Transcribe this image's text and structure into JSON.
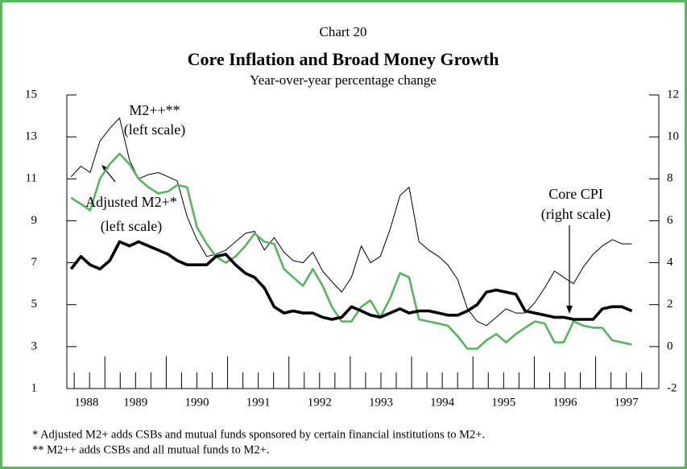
{
  "chart_data": {
    "type": "line",
    "chart_number": "Chart 20",
    "title": "Core Inflation and Broad Money Growth",
    "subtitle": "Year-over-year percentage change",
    "x": [
      1988.45,
      1988.61,
      1988.76,
      1988.92,
      1989.08,
      1989.24,
      1989.4,
      1989.55,
      1989.71,
      1989.87,
      1990.03,
      1990.18,
      1990.34,
      1990.5,
      1990.66,
      1990.81,
      1990.97,
      1991.13,
      1991.29,
      1991.44,
      1991.6,
      1991.76,
      1991.92,
      1992.07,
      1992.23,
      1992.39,
      1992.55,
      1992.7,
      1992.86,
      1993.02,
      1993.18,
      1993.33,
      1993.49,
      1993.65,
      1993.81,
      1993.96,
      1994.12,
      1994.28,
      1994.44,
      1994.59,
      1994.75,
      1994.91,
      1995.07,
      1995.22,
      1995.38,
      1995.54,
      1995.7,
      1995.85,
      1996.01,
      1996.17,
      1996.33,
      1996.48,
      1996.64,
      1996.8,
      1996.96,
      1997.11,
      1997.27,
      1997.43,
      1997.59
    ],
    "xlim": [
      1988.38,
      1998.03
    ],
    "xticks": [
      1989,
      1990,
      1991,
      1992,
      1993,
      1994,
      1995,
      1996,
      1997
    ],
    "x_labels": [
      {
        "value": 1988.7,
        "label": "1988"
      },
      {
        "value": 1989.5,
        "label": "1989"
      },
      {
        "value": 1990.5,
        "label": "1990"
      },
      {
        "value": 1991.5,
        "label": "1991"
      },
      {
        "value": 1992.5,
        "label": "1992"
      },
      {
        "value": 1993.5,
        "label": "1993"
      },
      {
        "value": 1994.5,
        "label": "1994"
      },
      {
        "value": 1995.5,
        "label": "1995"
      },
      {
        "value": 1996.5,
        "label": "1996"
      },
      {
        "value": 1997.5,
        "label": "1997"
      }
    ],
    "ylim": [
      1,
      15
    ],
    "yticks": [
      1,
      3,
      5,
      7,
      9,
      11,
      13,
      15
    ],
    "y2lim": [
      -2,
      12
    ],
    "y2ticks": [
      -2,
      0,
      2,
      4,
      6,
      8,
      10,
      12
    ],
    "series": [
      {
        "name": "M2++**",
        "note": "(left scale)",
        "color": "#000000",
        "width": 1,
        "values": [
          11.1,
          11.6,
          11.3,
          12.8,
          13.4,
          13.9,
          11.9,
          11.0,
          11.2,
          11.3,
          11.1,
          10.9,
          9.2,
          8.1,
          7.3,
          7.4,
          7.6,
          8.0,
          8.4,
          8.5,
          7.6,
          8.2,
          7.5,
          7.1,
          7.0,
          7.5,
          6.6,
          6.1,
          5.6,
          6.3,
          7.8,
          7.0,
          7.3,
          8.6,
          10.2,
          10.6,
          8.0,
          7.6,
          7.3,
          6.9,
          6.2,
          4.8,
          4.2,
          4.0,
          4.4,
          4.8,
          4.6,
          4.6,
          5.1,
          5.8,
          6.6,
          6.3,
          6.0,
          6.8,
          7.4,
          7.8,
          8.1,
          7.9,
          7.9
        ]
      },
      {
        "name": "Adjusted M2+*",
        "note": "(left scale)",
        "color": "#55b560",
        "width": 2.6,
        "values": [
          10.1,
          9.8,
          9.5,
          11.0,
          11.7,
          12.2,
          11.7,
          11.0,
          10.6,
          10.3,
          10.4,
          10.7,
          10.6,
          8.7,
          7.9,
          7.3,
          7.0,
          7.3,
          7.8,
          8.4,
          8.0,
          7.9,
          6.7,
          6.3,
          5.9,
          6.7,
          5.9,
          4.9,
          4.2,
          4.2,
          4.9,
          5.2,
          4.4,
          5.3,
          6.5,
          6.3,
          4.3,
          4.2,
          4.1,
          4.0,
          3.5,
          2.9,
          2.9,
          3.3,
          3.6,
          3.2,
          3.6,
          3.9,
          4.2,
          4.1,
          3.2,
          3.2,
          4.2,
          4.0,
          3.9,
          3.9,
          3.3,
          3.2,
          3.1
        ]
      },
      {
        "name": "Core CPI",
        "note": "(right scale)",
        "color": "#000000",
        "width": 3.6,
        "axis": "y2",
        "values": [
          3.7,
          4.3,
          3.9,
          3.7,
          4.1,
          5.0,
          4.8,
          5.0,
          4.8,
          4.6,
          4.4,
          4.1,
          3.9,
          3.9,
          3.9,
          4.3,
          4.4,
          3.9,
          3.5,
          3.3,
          2.8,
          1.9,
          1.6,
          1.7,
          1.6,
          1.6,
          1.4,
          1.3,
          1.4,
          1.9,
          1.7,
          1.5,
          1.4,
          1.6,
          1.8,
          1.6,
          1.7,
          1.7,
          1.6,
          1.5,
          1.5,
          1.7,
          2.0,
          2.6,
          2.7,
          2.6,
          2.5,
          1.7,
          1.6,
          1.5,
          1.4,
          1.4,
          1.3,
          1.3,
          1.3,
          1.8,
          1.9,
          1.9,
          1.7
        ]
      }
    ],
    "footnotes": [
      "*  Adjusted M2+ adds CSBs and mutual funds sponsored by certain financial institutions to M2+.",
      "** M2++ adds CSBs and all mutual funds to M2+."
    ]
  }
}
